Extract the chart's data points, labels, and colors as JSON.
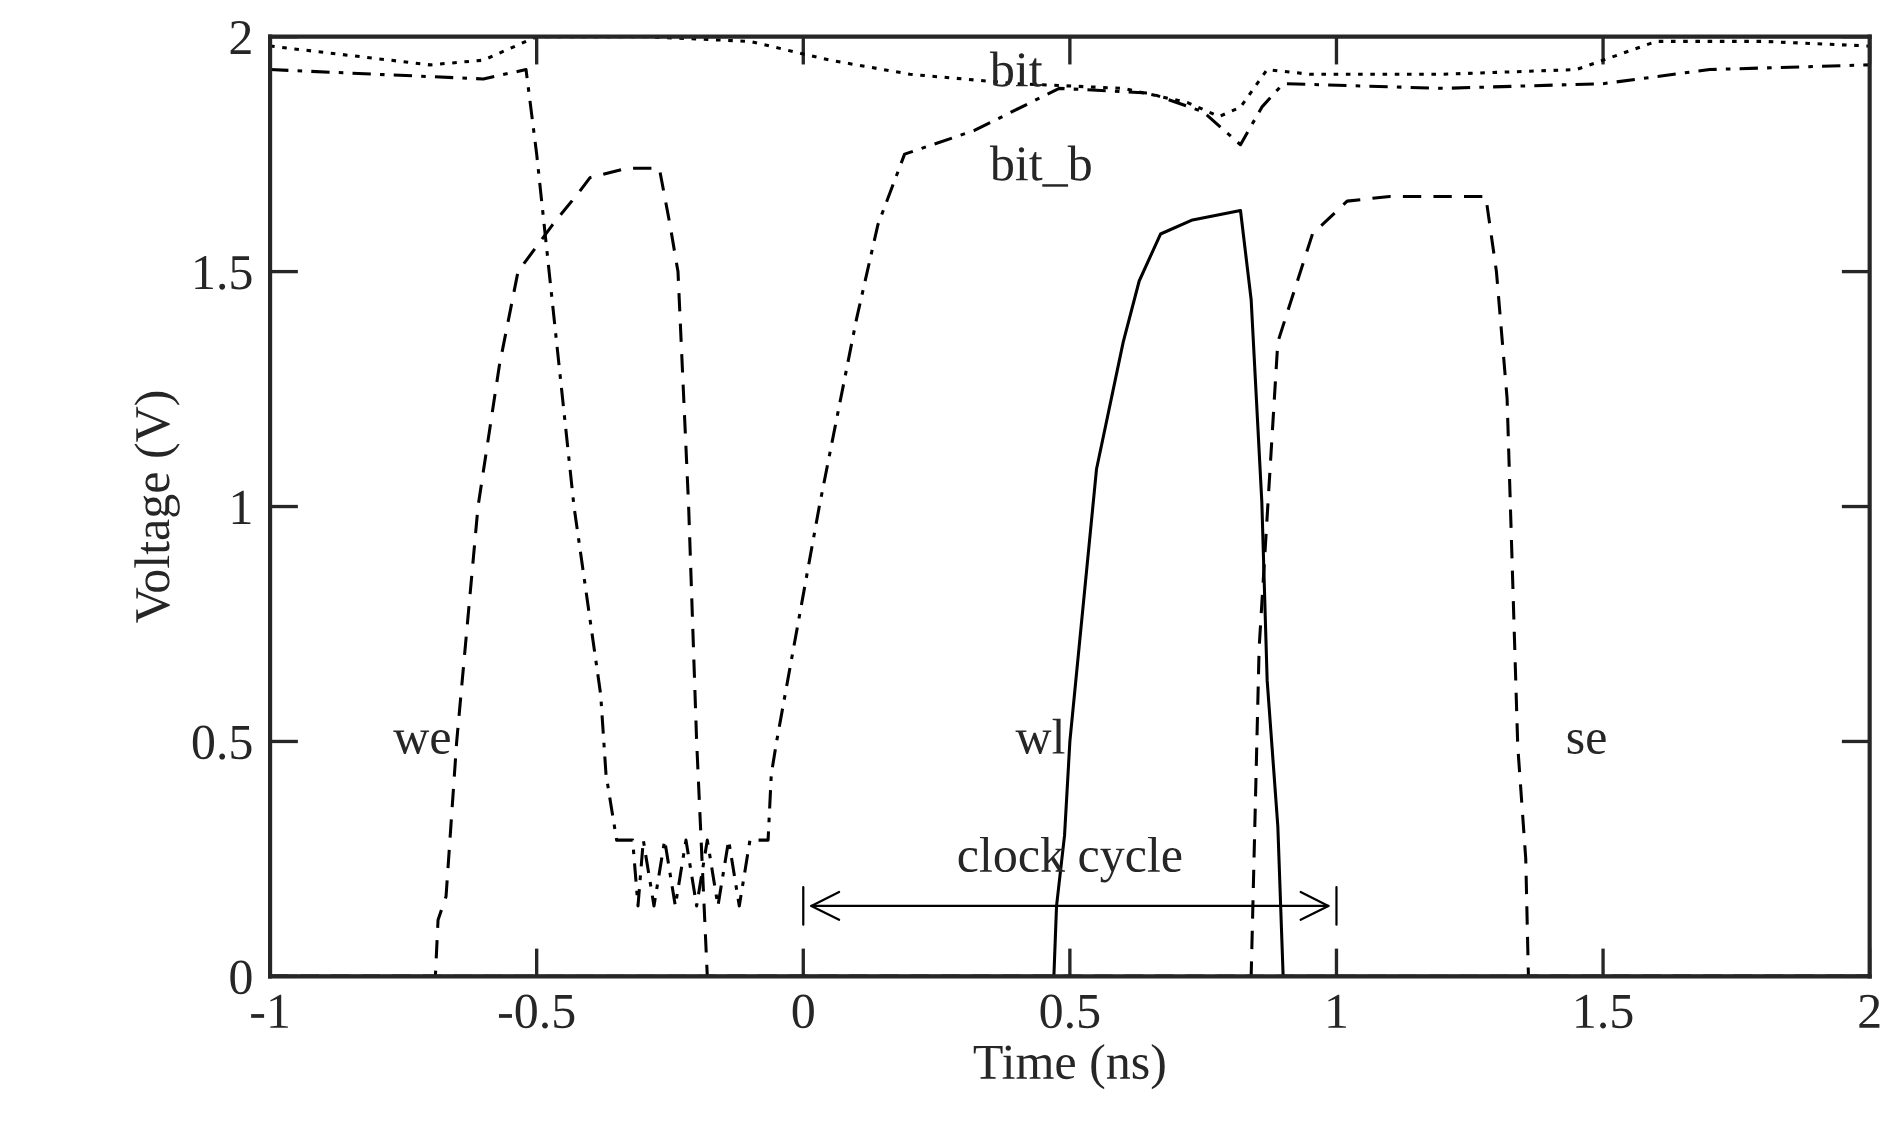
{
  "chart_data": {
    "type": "line",
    "xlabel": "Time (ns)",
    "ylabel": "Voltage (V)",
    "xlim": [
      -1,
      2
    ],
    "ylim": [
      0,
      2
    ],
    "xticks": [
      -1,
      -0.5,
      0,
      0.5,
      1,
      1.5,
      2
    ],
    "yticks": [
      0,
      0.5,
      1,
      1.5,
      2
    ],
    "grid": false,
    "legend": false,
    "marker": "none",
    "series": [
      {
        "name": "we",
        "color": "#000000",
        "line_style": "dashed",
        "x": [
          -1,
          -0.69,
          -0.685,
          -0.67,
          -0.65,
          -0.61,
          -0.57,
          -0.535,
          -0.47,
          -0.42,
          -0.4,
          -0.33,
          -0.27,
          -0.25,
          -0.235,
          -0.215,
          -0.2,
          -0.18,
          0.5,
          2
        ],
        "values": [
          0,
          0,
          0.12,
          0.17,
          0.5,
          1.0,
          1.3,
          1.5,
          1.6,
          1.67,
          1.7,
          1.72,
          1.72,
          1.6,
          1.5,
          1.0,
          0.5,
          0,
          0,
          0
        ]
      },
      {
        "name": "bit",
        "color": "#000000",
        "line_style": "dotted",
        "x": [
          -1,
          -0.85,
          -0.7,
          -0.6,
          -0.5,
          -0.3,
          -0.1,
          0.05,
          0.2,
          0.4,
          0.6,
          0.72,
          0.78,
          0.82,
          0.87,
          0.95,
          1.2,
          1.45,
          1.6,
          1.8,
          2
        ],
        "values": [
          1.98,
          1.96,
          1.94,
          1.95,
          2.0,
          2.0,
          1.99,
          1.95,
          1.92,
          1.9,
          1.89,
          1.86,
          1.83,
          1.85,
          1.93,
          1.92,
          1.92,
          1.93,
          1.99,
          1.99,
          1.98
        ]
      },
      {
        "name": "bit_b",
        "color": "#000000",
        "line_style": "dashdot",
        "x": [
          -1,
          -0.8,
          -0.6,
          -0.52,
          -0.5,
          -0.43,
          -0.38,
          -0.37,
          -0.35,
          -0.32,
          -0.31,
          -0.3,
          -0.28,
          -0.26,
          -0.24,
          -0.22,
          -0.2,
          -0.18,
          -0.16,
          -0.14,
          -0.12,
          -0.1,
          -0.066,
          -0.06,
          -0.05,
          0.03,
          0.1,
          0.14,
          0.19,
          0.32,
          0.48,
          0.65,
          0.75,
          0.82,
          0.86,
          0.9,
          1.2,
          1.5,
          1.7,
          2
        ],
        "values": [
          1.93,
          1.92,
          1.91,
          1.93,
          1.75,
          1.0,
          0.6,
          0.43,
          0.29,
          0.29,
          0.15,
          0.29,
          0.15,
          0.29,
          0.15,
          0.29,
          0.15,
          0.29,
          0.15,
          0.29,
          0.15,
          0.29,
          0.29,
          0.43,
          0.5,
          1.0,
          1.4,
          1.6,
          1.75,
          1.8,
          1.89,
          1.88,
          1.84,
          1.77,
          1.85,
          1.9,
          1.89,
          1.9,
          1.93,
          1.94
        ]
      },
      {
        "name": "wl",
        "color": "#000000",
        "line_style": "solid",
        "x": [
          -1,
          0.47,
          0.475,
          0.49,
          0.5,
          0.55,
          0.6,
          0.63,
          0.67,
          0.73,
          0.82,
          0.84,
          0.86,
          0.87,
          0.89,
          0.9,
          2
        ],
        "values": [
          0,
          0,
          0.15,
          0.3,
          0.5,
          1.08,
          1.35,
          1.48,
          1.58,
          1.61,
          1.63,
          1.44,
          1.01,
          0.63,
          0.32,
          0,
          0
        ]
      },
      {
        "name": "se",
        "color": "#000000",
        "line_style": "dashed",
        "x": [
          -1,
          0.84,
          0.855,
          0.89,
          0.955,
          1.02,
          1.1,
          1.28,
          1.3,
          1.32,
          1.34,
          1.355,
          1.36,
          2
        ],
        "values": [
          0,
          0,
          0.7,
          1.35,
          1.58,
          1.65,
          1.66,
          1.66,
          1.5,
          1.23,
          0.49,
          0.25,
          0,
          0
        ]
      }
    ],
    "annotations": [
      "clock cycle"
    ]
  }
}
